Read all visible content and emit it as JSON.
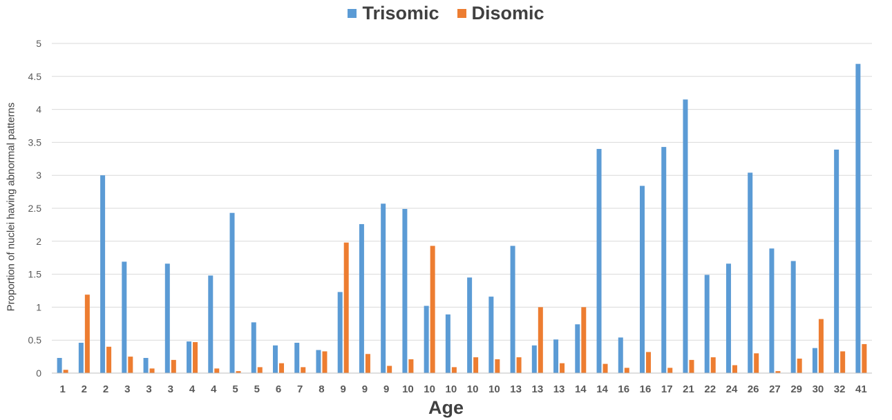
{
  "chart_data": {
    "type": "bar",
    "title": "",
    "xlabel": "Age",
    "ylabel": "Proportion of nuclei having abnormal patterns",
    "ylim": [
      0,
      5
    ],
    "yticks": [
      "0",
      "0.5",
      "1",
      "1.5",
      "2",
      "2.5",
      "3",
      "3.5",
      "4",
      "4.5",
      "5"
    ],
    "grid": true,
    "legend_position": "top",
    "categories": [
      "1",
      "2",
      "2",
      "3",
      "3",
      "3",
      "4",
      "4",
      "5",
      "5",
      "6",
      "7",
      "8",
      "9",
      "9",
      "9",
      "10",
      "10",
      "10",
      "10",
      "10",
      "13",
      "13",
      "13",
      "14",
      "14",
      "16",
      "16",
      "17",
      "21",
      "22",
      "24",
      "26",
      "27",
      "29",
      "30",
      "32",
      "41"
    ],
    "series": [
      {
        "name": "Trisomic",
        "color": "#5B9BD5",
        "values": [
          0.23,
          0.46,
          3.0,
          1.69,
          0.23,
          1.66,
          0.48,
          1.48,
          2.43,
          0.77,
          0.42,
          0.46,
          0.35,
          1.23,
          2.26,
          2.57,
          2.49,
          1.02,
          0.89,
          1.45,
          1.16,
          1.93,
          0.42,
          0.51,
          0.74,
          3.4,
          0.54,
          2.84,
          3.43,
          4.15,
          1.49,
          1.66,
          3.04,
          1.89,
          1.7,
          0.38,
          3.39,
          4.69
        ]
      },
      {
        "name": "Disomic",
        "color": "#ED7D31",
        "values": [
          0.05,
          1.19,
          0.4,
          0.25,
          0.07,
          0.2,
          0.47,
          0.07,
          0.03,
          0.09,
          0.15,
          0.09,
          0.33,
          1.98,
          0.29,
          0.11,
          0.21,
          1.93,
          0.09,
          0.24,
          0.21,
          0.24,
          1.0,
          0.15,
          1.0,
          0.14,
          0.08,
          0.32,
          0.08,
          0.2,
          0.24,
          0.12,
          0.3,
          0.03,
          0.22,
          0.82,
          0.33,
          0.44
        ]
      }
    ]
  }
}
